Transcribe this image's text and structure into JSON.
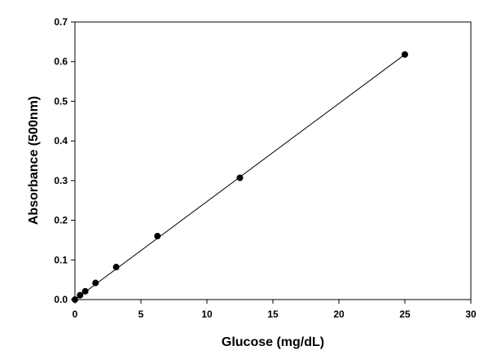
{
  "chart_data": {
    "type": "scatter",
    "title": "",
    "xlabel": "Glucose (mg/dL)",
    "ylabel": "Absorbance (500nm)",
    "xlim": [
      0,
      30
    ],
    "ylim": [
      0,
      0.7
    ],
    "x_ticks": [
      "0",
      "5",
      "10",
      "15",
      "20",
      "25",
      "30"
    ],
    "y_ticks": [
      "0.0",
      "0.1",
      "0.2",
      "0.3",
      "0.4",
      "0.5",
      "0.6",
      "0.7"
    ],
    "grid": false,
    "legend": "none",
    "series": [
      {
        "points": [
          {
            "x": 0,
            "y": 0.0
          },
          {
            "x": 0.39,
            "y": 0.011
          },
          {
            "x": 0.78,
            "y": 0.021
          },
          {
            "x": 1.56,
            "y": 0.042
          },
          {
            "x": 3.125,
            "y": 0.082
          },
          {
            "x": 6.25,
            "y": 0.16
          },
          {
            "x": 12.5,
            "y": 0.307
          },
          {
            "x": 25,
            "y": 0.618
          }
        ],
        "fit_line": {
          "x": [
            0,
            25
          ],
          "y": [
            0.0,
            0.618
          ]
        },
        "color": "#000000"
      }
    ]
  }
}
